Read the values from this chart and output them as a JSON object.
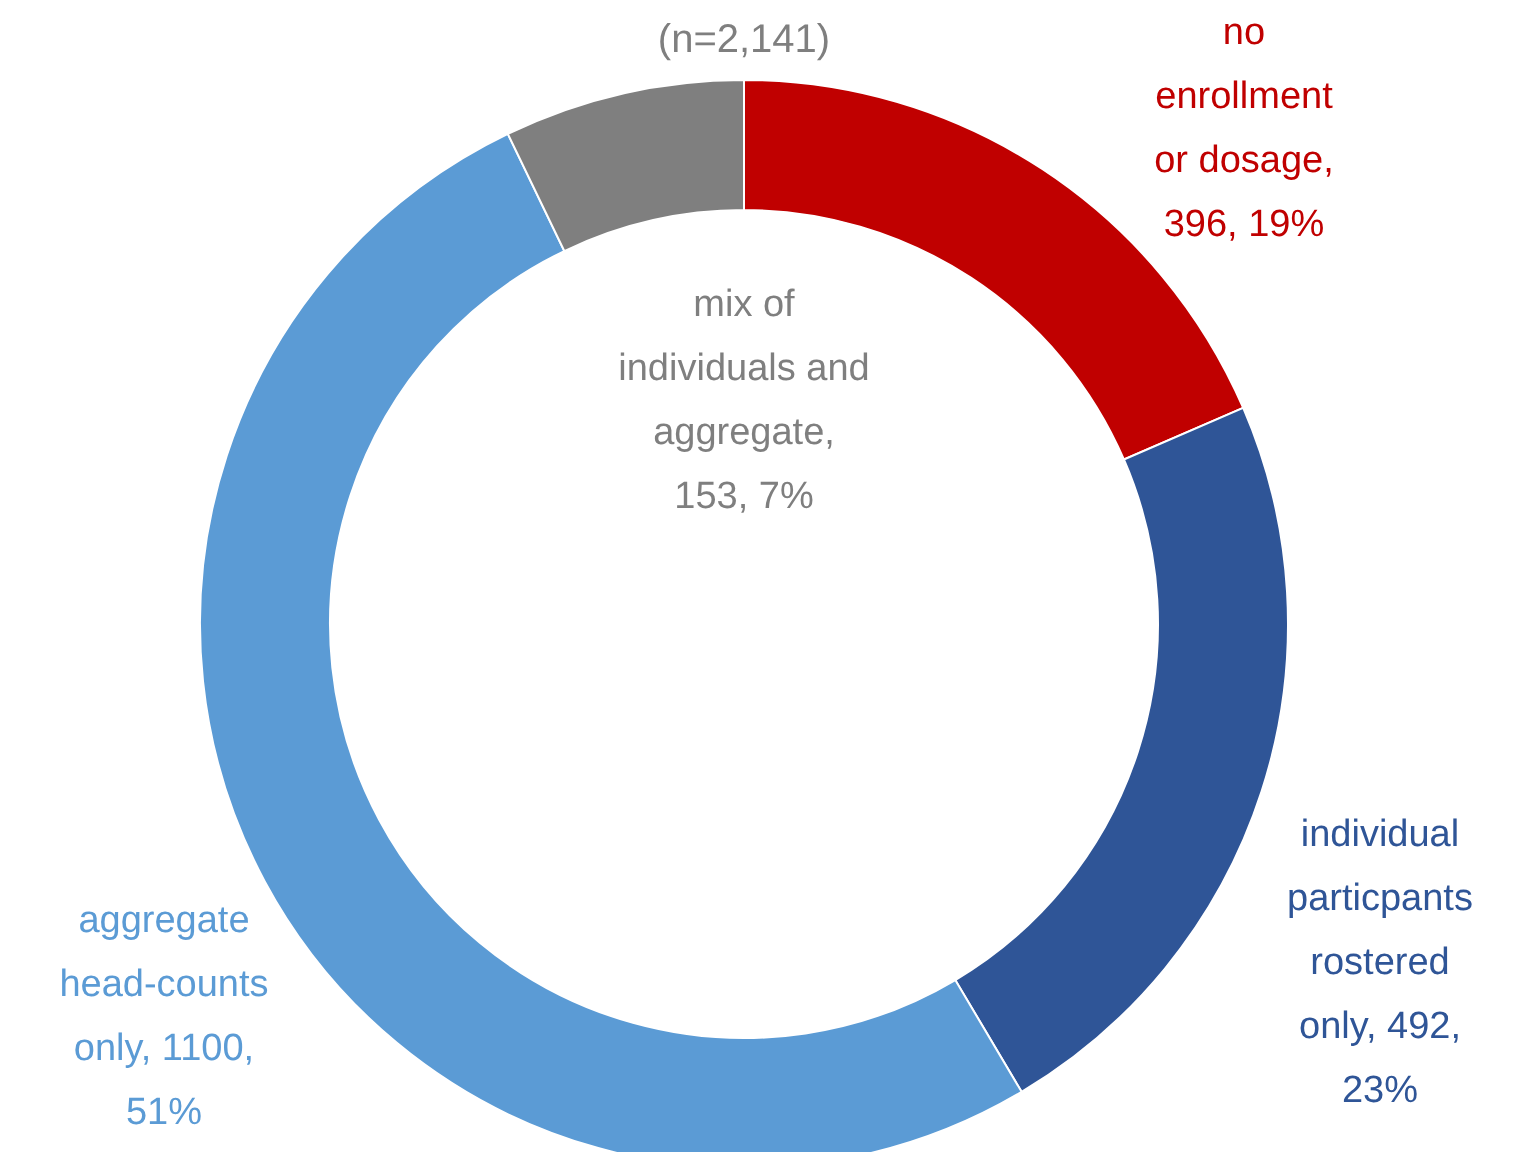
{
  "chart_data": {
    "type": "donut",
    "title": "(n=2,141)",
    "categories": [
      "no enrollment or dosage, 396, 19%",
      "individual particpants rostered only, 492, 23%",
      "aggregate head-counts only, 1100, 51%",
      "mix of individuals and aggregate, 153, 7%"
    ],
    "values": [
      396,
      492,
      1100,
      153
    ],
    "colors": [
      "#c00000",
      "#2f5597",
      "#5b9bd5",
      "#7f7f7f"
    ]
  }
}
